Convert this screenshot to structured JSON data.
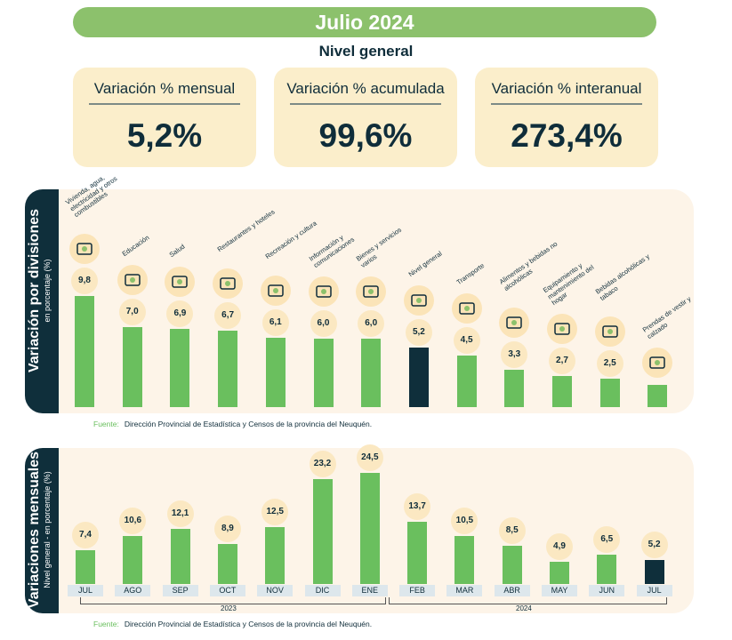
{
  "header": {
    "title": "Julio 2024",
    "subtitle": "Nivel general"
  },
  "cards": [
    {
      "label": "Variación % mensual",
      "value": "5,2%"
    },
    {
      "label": "Variación % acumulada",
      "value": "99,6%"
    },
    {
      "label": "Variación % interanual",
      "value": "273,4%"
    }
  ],
  "colors": {
    "bar": "#6abf5e",
    "highlight": "#0f2f3b",
    "panel": "#fdf4e8",
    "bubble": "#fbe8c2",
    "title_bg": "#8cc16c"
  },
  "chart_data": [
    {
      "type": "bar",
      "title": "Variación por divisiones",
      "ylabel": "en porcentaje (%)",
      "categories": [
        "Vivienda, agua, electricidad y otros combustibles",
        "Educación",
        "Salud",
        "Restaurantes y hoteles",
        "Recreación y cultura",
        "Información y comunicaciones",
        "Bienes y servicios varios",
        "Nivel general",
        "Transporte",
        "Alimentos y bebidas no alcohólicas",
        "Equipamiento y mantenimiento del hogar",
        "Bebidas alcohólicas y tabaco",
        "Prendas de vestir y calzado"
      ],
      "values": [
        9.8,
        7.0,
        6.9,
        6.7,
        6.1,
        6.0,
        6.0,
        5.2,
        4.5,
        3.3,
        2.7,
        2.5,
        null
      ],
      "value_labels": [
        "9,8",
        "7,0",
        "6,9",
        "6,7",
        "6,1",
        "6,0",
        "6,0",
        "5,2",
        "4,5",
        "3,3",
        "2,7",
        "2,5",
        ""
      ],
      "highlight": "Nivel general",
      "source_label": "Fuente:",
      "source": "Dirección Provincial de Estadística y Censos de la provincia del Neuquén."
    },
    {
      "type": "bar",
      "title": "Variaciones mensuales",
      "ylabel": "Nivel general - en porcentaje (%)",
      "categories": [
        "JUL",
        "AGO",
        "SEP",
        "OCT",
        "NOV",
        "DIC",
        "ENE",
        "FEB",
        "MAR",
        "ABR",
        "MAY",
        "JUN",
        "JUL"
      ],
      "values": [
        7.4,
        10.6,
        12.1,
        8.9,
        12.5,
        23.2,
        24.5,
        13.7,
        10.5,
        8.5,
        4.9,
        6.5,
        5.2
      ],
      "value_labels": [
        "7,4",
        "10,6",
        "12,1",
        "8,9",
        "12,5",
        "23,2",
        "24,5",
        "13,7",
        "10,5",
        "8,5",
        "4,9",
        "6,5",
        "5,2"
      ],
      "years": [
        "2023",
        "2024"
      ],
      "highlight_index": 12,
      "source_label": "Fuente:",
      "source": "Dirección Provincial de Estadística y Censos de la provincia del Neuquén."
    }
  ]
}
